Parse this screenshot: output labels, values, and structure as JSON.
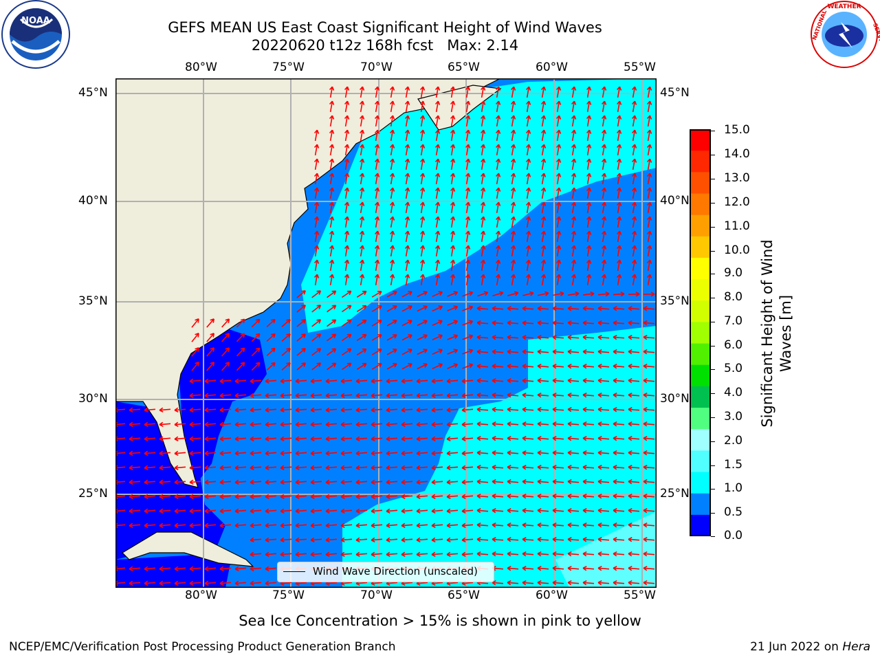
{
  "title": {
    "line1": "GEFS MEAN US East Coast Significant Height of Wind Waves",
    "line2": "20220620 t12z 168h fcst   Max: 2.14"
  },
  "map": {
    "lon_ticks": [
      "80°W",
      "75°W",
      "70°W",
      "65°W",
      "60°W",
      "55°W"
    ],
    "lat_ticks": [
      "45°N",
      "40°N",
      "35°N",
      "30°N",
      "25°N"
    ],
    "colors": {
      "land": "#efeddc",
      "ocean_low": "#0000ff",
      "ocean_mid": "#0080ff",
      "ocean_high": "#00ffff",
      "ocean_top": "#40ffff",
      "arrow": "#ff0000",
      "grid": "#b0b0b0"
    },
    "legend_label": "Wind Wave Direction (unscaled)"
  },
  "colorbar": {
    "label": "Significant Height of Wind Waves [m]",
    "ticks": [
      "15.0",
      "14.0",
      "13.0",
      "12.0",
      "11.0",
      "10.0",
      "9.0",
      "8.0",
      "7.0",
      "6.0",
      "5.0",
      "4.0",
      "3.0",
      "2.0",
      "1.5",
      "1.0",
      "0.5",
      "0.0"
    ],
    "colors_top_to_bottom": [
      "#ff0000",
      "#ff2800",
      "#ff5000",
      "#ff7800",
      "#ffa000",
      "#ffc800",
      "#ffff00",
      "#ecff00",
      "#d2ff00",
      "#a0ff00",
      "#50f000",
      "#00e000",
      "#00c050",
      "#50ff80",
      "#a0ffff",
      "#50ffff",
      "#00ffff",
      "#0080ff",
      "#0000ff"
    ]
  },
  "note": "Sea Ice Concentration > 15% is shown in pink to yellow",
  "footer": {
    "left": "NCEP/EMC/Verification Post Processing Product Generation Branch",
    "date": "21 Jun 2022 on",
    "host": "Hera"
  },
  "logos": {
    "noaa": {
      "icon": "noaa-logo",
      "text": "NOAA"
    },
    "nws": {
      "icon": "nws-logo",
      "text": "NATIONAL WEATHER SERVICE"
    }
  }
}
